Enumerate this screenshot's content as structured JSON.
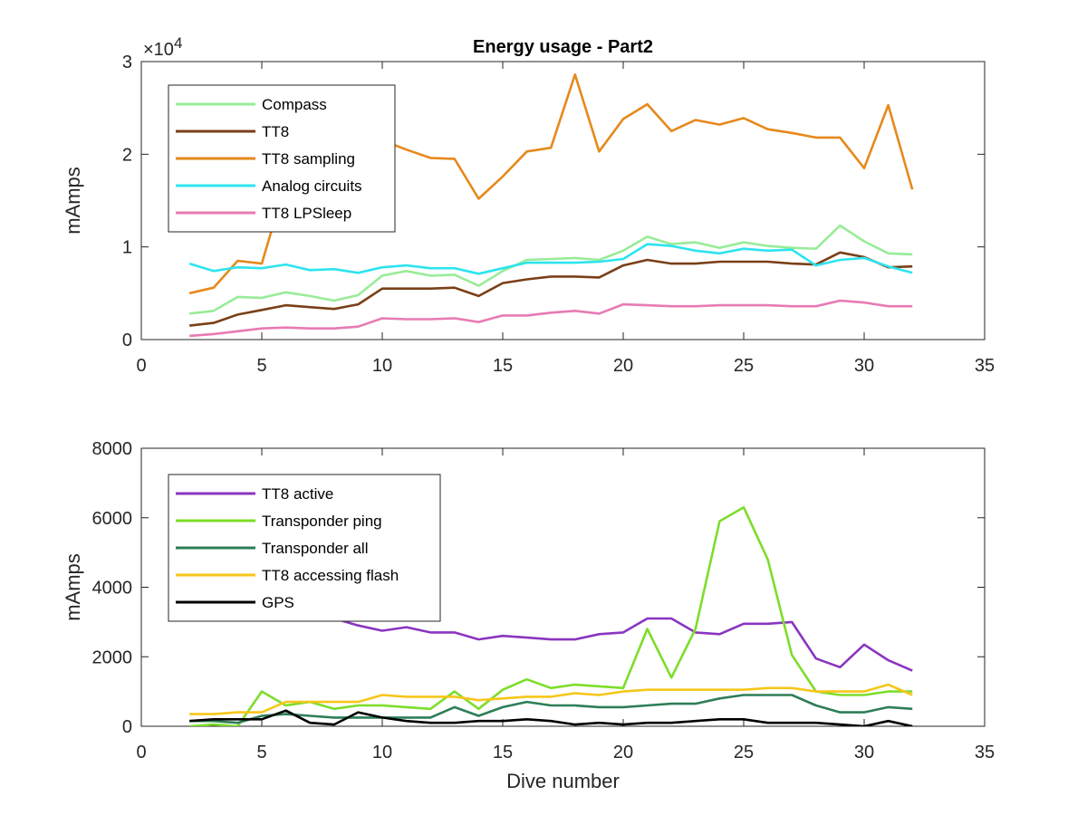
{
  "figure": {
    "background": "#ffffff"
  },
  "chart_data": [
    {
      "type": "line",
      "title": "Energy usage - Part2",
      "xlabel": "",
      "ylabel": "mAmps",
      "xlim": [
        0,
        35
      ],
      "ylim": [
        0,
        30000
      ],
      "x_ticks": [
        "0",
        "5",
        "10",
        "15",
        "20",
        "25",
        "30",
        "35"
      ],
      "y_ticks": [
        "0",
        "1",
        "2",
        "3"
      ],
      "y_exponent": {
        "base": "×10",
        "power": "4"
      },
      "legend_position": "top-left",
      "x": [
        2,
        3,
        4,
        5,
        6,
        7,
        8,
        9,
        10,
        11,
        12,
        13,
        14,
        15,
        16,
        17,
        18,
        19,
        20,
        21,
        22,
        23,
        24,
        25,
        26,
        27,
        28,
        29,
        30,
        31,
        32
      ],
      "series": [
        {
          "name": "Compass",
          "color": "#98ec98",
          "values": [
            2800,
            3100,
            4600,
            4500,
            5100,
            4700,
            4200,
            4800,
            6900,
            7400,
            6900,
            7000,
            5800,
            7400,
            8600,
            8700,
            8800,
            8600,
            9600,
            11100,
            10300,
            10500,
            9900,
            10500,
            10100,
            9900,
            9800,
            12300,
            10600,
            9300,
            9200
          ]
        },
        {
          "name": "TT8",
          "color": "#7a3f18",
          "values": [
            1500,
            1800,
            2700,
            3200,
            3700,
            3500,
            3300,
            3800,
            5500,
            5500,
            5500,
            5600,
            4700,
            6100,
            6500,
            6800,
            6800,
            6700,
            8000,
            8600,
            8200,
            8200,
            8400,
            8400,
            8400,
            8200,
            8100,
            9400,
            8900,
            7800,
            7900
          ]
        },
        {
          "name": "TT8 sampling",
          "color": "#e6891b",
          "values": [
            5000,
            5600,
            8500,
            8200,
            17000,
            19000,
            20000,
            20500,
            21500,
            20500,
            19600,
            19500,
            15200,
            17600,
            20300,
            20700,
            28600,
            20300,
            23800,
            25400,
            22500,
            23700,
            23200,
            23900,
            22700,
            22300,
            21800,
            21800,
            18500,
            25300,
            16200
          ]
        },
        {
          "name": "Analog circuits",
          "color": "#2de4ee",
          "values": [
            8200,
            7400,
            7800,
            7700,
            8100,
            7500,
            7600,
            7200,
            7800,
            8000,
            7700,
            7700,
            7100,
            7700,
            8300,
            8300,
            8300,
            8400,
            8700,
            10300,
            10100,
            9600,
            9300,
            9800,
            9600,
            9700,
            8000,
            8600,
            8800,
            7900,
            7200
          ]
        },
        {
          "name": "TT8 LPSleep",
          "color": "#e87ab3",
          "values": [
            400,
            600,
            900,
            1200,
            1300,
            1200,
            1200,
            1400,
            2300,
            2200,
            2200,
            2300,
            1900,
            2600,
            2600,
            2900,
            3100,
            2800,
            3800,
            3700,
            3600,
            3600,
            3700,
            3700,
            3700,
            3600,
            3600,
            4200,
            4000,
            3600,
            3600
          ]
        }
      ]
    },
    {
      "type": "line",
      "title": "",
      "xlabel": "Dive number",
      "ylabel": "mAmps",
      "xlim": [
        0,
        35
      ],
      "ylim": [
        0,
        8000
      ],
      "x_ticks": [
        "0",
        "5",
        "10",
        "15",
        "20",
        "25",
        "30",
        "35"
      ],
      "y_ticks": [
        "0",
        "2000",
        "4000",
        "6000",
        "8000"
      ],
      "legend_position": "top-left",
      "x": [
        2,
        3,
        4,
        5,
        6,
        7,
        8,
        9,
        10,
        11,
        12,
        13,
        14,
        15,
        16,
        17,
        18,
        19,
        20,
        21,
        22,
        23,
        24,
        25,
        26,
        27,
        28,
        29,
        30,
        31,
        32
      ],
      "series": [
        {
          "name": "TT8 active",
          "color": "#8a35c0",
          "values": [
            3500,
            3400,
            3300,
            3300,
            3200,
            3200,
            3100,
            2900,
            2750,
            2850,
            2700,
            2700,
            2500,
            2600,
            2550,
            2500,
            2500,
            2650,
            2700,
            3100,
            3100,
            2700,
            2650,
            2950,
            2950,
            3000,
            1950,
            1700,
            2350,
            1900,
            1600
          ]
        },
        {
          "name": "Transponder ping",
          "color": "#7ddd2a",
          "values": [
            0,
            50,
            0,
            1000,
            600,
            700,
            500,
            600,
            600,
            550,
            500,
            1000,
            500,
            1050,
            1350,
            1100,
            1200,
            1150,
            1100,
            2800,
            1400,
            2800,
            5900,
            6300,
            4800,
            2050,
            1000,
            900,
            900,
            1000,
            1000
          ]
        },
        {
          "name": "Transponder all",
          "color": "#2e7e57",
          "values": [
            150,
            150,
            100,
            300,
            350,
            300,
            250,
            250,
            250,
            250,
            250,
            550,
            300,
            550,
            700,
            600,
            600,
            550,
            550,
            600,
            650,
            650,
            800,
            900,
            900,
            900,
            600,
            400,
            400,
            550,
            500
          ]
        },
        {
          "name": "TT8 accessing flash",
          "color": "#f6c61a",
          "values": [
            350,
            350,
            400,
            400,
            700,
            700,
            700,
            700,
            900,
            850,
            850,
            850,
            750,
            800,
            850,
            850,
            950,
            900,
            1000,
            1050,
            1050,
            1050,
            1050,
            1050,
            1100,
            1100,
            1000,
            1000,
            1000,
            1200,
            900
          ]
        },
        {
          "name": "GPS",
          "color": "#000000",
          "values": [
            150,
            200,
            200,
            200,
            450,
            100,
            50,
            400,
            250,
            150,
            100,
            100,
            150,
            150,
            200,
            150,
            50,
            100,
            50,
            100,
            100,
            150,
            200,
            200,
            100,
            100,
            100,
            50,
            0,
            150,
            0
          ]
        }
      ]
    }
  ]
}
